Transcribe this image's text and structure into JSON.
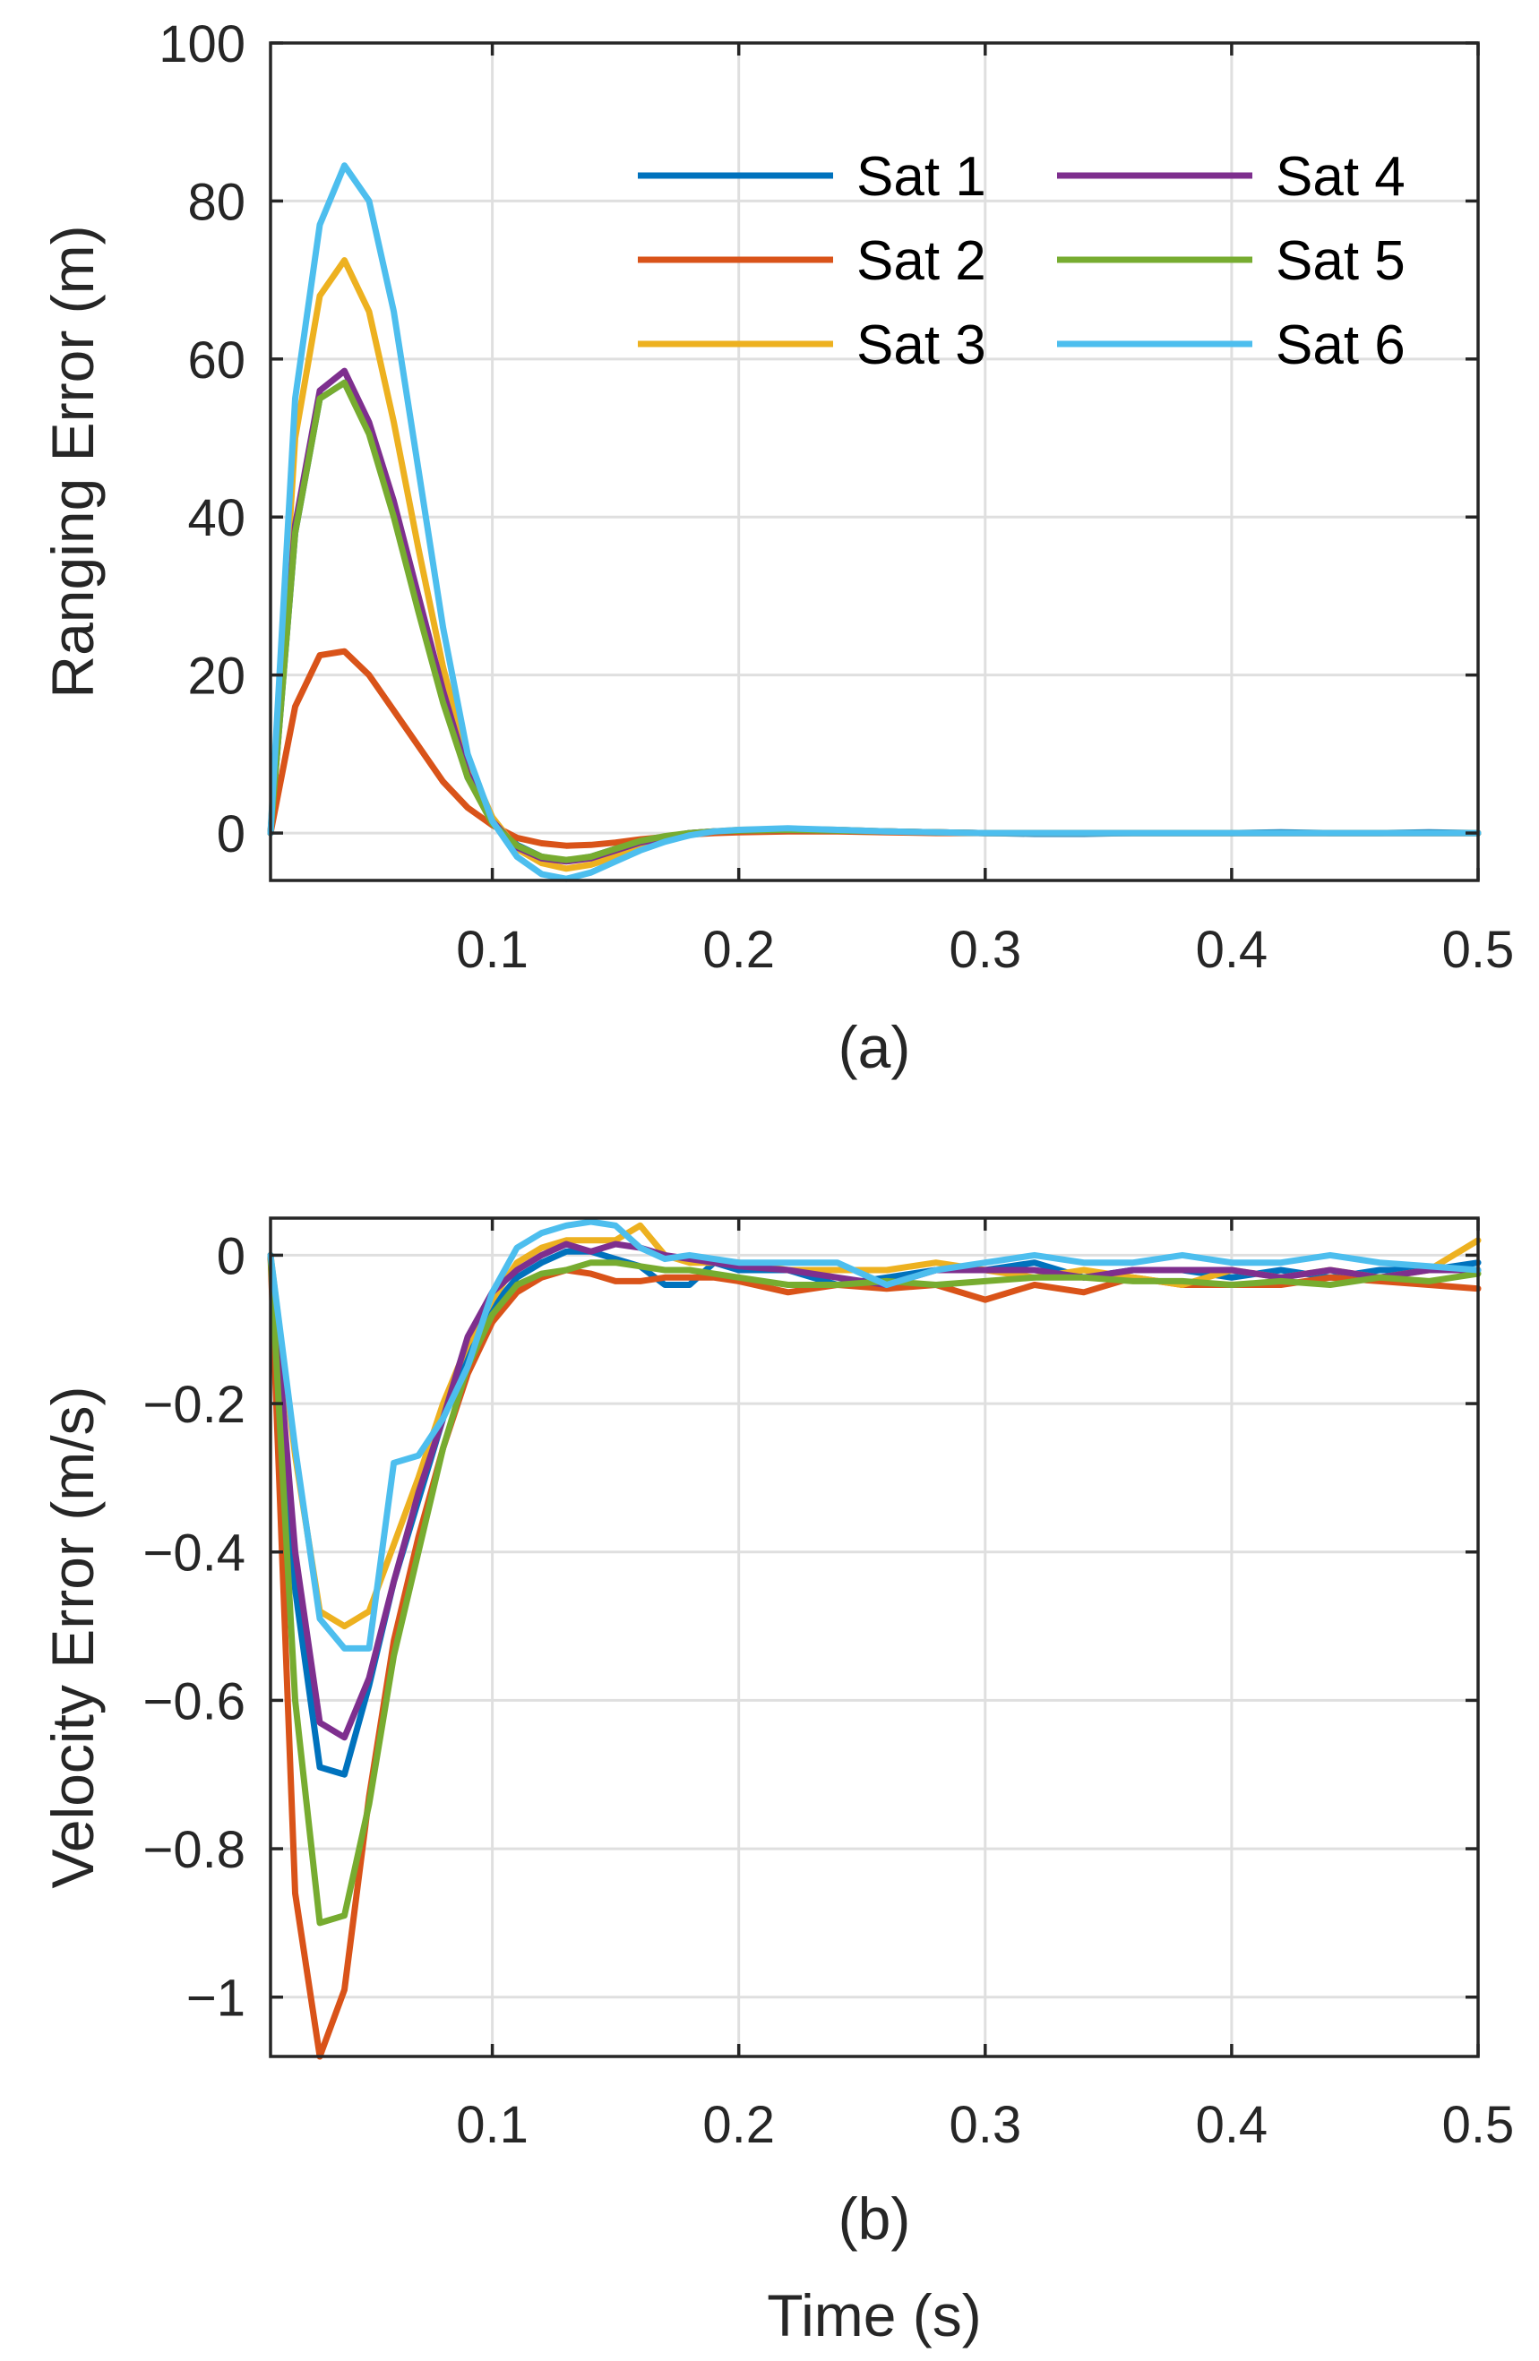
{
  "chart_data": [
    {
      "type": "line",
      "panel_label": "(a)",
      "ylabel": "Ranging Error (m)",
      "xlabel": "",
      "xlim": [
        0.01,
        0.5
      ],
      "ylim": [
        -6,
        100
      ],
      "xticks": [
        0.1,
        0.2,
        0.3,
        0.4,
        0.5
      ],
      "xtick_labels": [
        "0.1",
        "0.2",
        "0.3",
        "0.4",
        "0.5"
      ],
      "yticks": [
        0,
        20,
        40,
        60,
        80,
        100
      ],
      "ytick_labels": [
        "0",
        "20",
        "40",
        "60",
        "80",
        "100"
      ],
      "grid": true,
      "legend": {
        "placement": "top-right",
        "columns": 2
      },
      "x": [
        0.01,
        0.02,
        0.03,
        0.04,
        0.05,
        0.06,
        0.07,
        0.08,
        0.09,
        0.1,
        0.11,
        0.12,
        0.13,
        0.14,
        0.15,
        0.16,
        0.17,
        0.18,
        0.19,
        0.2,
        0.22,
        0.24,
        0.26,
        0.28,
        0.3,
        0.32,
        0.34,
        0.36,
        0.38,
        0.4,
        0.42,
        0.44,
        0.46,
        0.48,
        0.5
      ],
      "series": [
        {
          "name": "Sat 1",
          "color": "#0072BD",
          "values": [
            0,
            38,
            55,
            57,
            51,
            41,
            29,
            17,
            7,
            1.5,
            -1.5,
            -3,
            -3.5,
            -3,
            -2,
            -1,
            -0.5,
            0,
            0.2,
            0.3,
            0.5,
            0.4,
            0.2,
            0.1,
            0,
            -0.1,
            -0.1,
            0,
            0,
            0,
            0.1,
            0,
            0,
            0.1,
            0
          ]
        },
        {
          "name": "Sat 2",
          "color": "#D95319",
          "values": [
            0,
            16,
            22.5,
            23,
            20,
            15.5,
            11,
            6.5,
            3.2,
            1,
            -0.6,
            -1.3,
            -1.6,
            -1.5,
            -1.2,
            -0.8,
            -0.5,
            -0.2,
            0,
            0.1,
            0.2,
            0.2,
            0.1,
            0,
            0,
            0,
            0,
            0,
            0,
            0,
            0,
            0,
            0,
            0,
            0
          ]
        },
        {
          "name": "Sat 3",
          "color": "#EDB120",
          "values": [
            0,
            50,
            68,
            72.5,
            66,
            52,
            36,
            21,
            9,
            2,
            -2,
            -3.8,
            -4.5,
            -4,
            -3,
            -1.8,
            -0.9,
            -0.2,
            0.2,
            0.4,
            0.5,
            0.4,
            0.2,
            0.1,
            0,
            0,
            0,
            0,
            0,
            0,
            0,
            0,
            0,
            0,
            0
          ]
        },
        {
          "name": "Sat 4",
          "color": "#7E2F8E",
          "values": [
            0,
            39,
            56,
            58.5,
            52,
            42,
            30,
            18,
            7.5,
            1.5,
            -1.8,
            -3.2,
            -3.6,
            -3.2,
            -2.2,
            -1.2,
            -0.6,
            0,
            0.2,
            0.3,
            0.4,
            0.3,
            0.2,
            0.1,
            0,
            0,
            0,
            0,
            0,
            0,
            0,
            0,
            0,
            0,
            0
          ]
        },
        {
          "name": "Sat 5",
          "color": "#77AC30",
          "values": [
            0,
            38,
            55,
            57,
            50.5,
            40,
            28,
            16.5,
            7,
            1.2,
            -1.6,
            -3,
            -3.4,
            -3,
            -2,
            -1,
            -0.4,
            0,
            0.2,
            0.3,
            0.4,
            0.3,
            0.2,
            0.1,
            0,
            0,
            0,
            0,
            0,
            0,
            0,
            0,
            0,
            0,
            0
          ]
        },
        {
          "name": "Sat 6",
          "color": "#4DBEEE",
          "values": [
            0,
            55,
            77,
            84.5,
            80,
            66,
            46,
            26,
            10,
            1.5,
            -3,
            -5.2,
            -5.8,
            -5,
            -3.6,
            -2.2,
            -1.1,
            -0.3,
            0.2,
            0.4,
            0.6,
            0.4,
            0.2,
            0.1,
            0,
            0,
            0,
            0,
            0,
            0,
            0,
            0,
            0,
            0,
            0
          ]
        }
      ]
    },
    {
      "type": "line",
      "panel_label": "(b)",
      "ylabel": "Velocity Error (m/s)",
      "xlabel": "Time (s)",
      "xlim": [
        0.01,
        0.5
      ],
      "ylim": [
        -1.08,
        0.05
      ],
      "xticks": [
        0.1,
        0.2,
        0.3,
        0.4,
        0.5
      ],
      "xtick_labels": [
        "0.1",
        "0.2",
        "0.3",
        "0.4",
        "0.5"
      ],
      "yticks": [
        -1,
        -0.8,
        -0.6,
        -0.4,
        -0.2,
        0
      ],
      "ytick_labels": [
        "−1",
        "−0.8",
        "−0.6",
        "−0.4",
        "−0.2",
        "0"
      ],
      "grid": true,
      "x": [
        0.01,
        0.02,
        0.03,
        0.04,
        0.05,
        0.06,
        0.07,
        0.08,
        0.09,
        0.1,
        0.11,
        0.12,
        0.13,
        0.14,
        0.15,
        0.16,
        0.17,
        0.18,
        0.19,
        0.2,
        0.22,
        0.24,
        0.26,
        0.28,
        0.3,
        0.32,
        0.34,
        0.36,
        0.38,
        0.4,
        0.42,
        0.44,
        0.46,
        0.48,
        0.5
      ],
      "series": [
        {
          "name": "Sat 1",
          "color": "#0072BD",
          "values": [
            0,
            -0.45,
            -0.69,
            -0.7,
            -0.58,
            -0.44,
            -0.33,
            -0.22,
            -0.13,
            -0.07,
            -0.03,
            -0.01,
            0.005,
            0.005,
            -0.005,
            -0.015,
            -0.04,
            -0.04,
            -0.01,
            -0.02,
            -0.02,
            -0.04,
            -0.03,
            -0.02,
            -0.02,
            -0.01,
            -0.03,
            -0.02,
            -0.02,
            -0.03,
            -0.02,
            -0.03,
            -0.02,
            -0.02,
            -0.01
          ]
        },
        {
          "name": "Sat 2",
          "color": "#D95319",
          "values": [
            0,
            -0.86,
            -1.08,
            -0.99,
            -0.73,
            -0.52,
            -0.38,
            -0.26,
            -0.16,
            -0.09,
            -0.05,
            -0.03,
            -0.02,
            -0.025,
            -0.035,
            -0.035,
            -0.03,
            -0.03,
            -0.03,
            -0.035,
            -0.05,
            -0.04,
            -0.045,
            -0.04,
            -0.06,
            -0.04,
            -0.05,
            -0.03,
            -0.04,
            -0.04,
            -0.04,
            -0.03,
            -0.035,
            -0.04,
            -0.045
          ]
        },
        {
          "name": "Sat 3",
          "color": "#EDB120",
          "values": [
            0,
            -0.27,
            -0.48,
            -0.5,
            -0.48,
            -0.39,
            -0.3,
            -0.2,
            -0.12,
            -0.06,
            -0.01,
            0.01,
            0.02,
            0.02,
            0.02,
            0.04,
            0.0,
            -0.01,
            -0.01,
            -0.01,
            -0.02,
            -0.02,
            -0.02,
            -0.01,
            -0.02,
            -0.03,
            -0.02,
            -0.03,
            -0.04,
            -0.02,
            -0.03,
            -0.02,
            -0.03,
            -0.02,
            0.02
          ]
        },
        {
          "name": "Sat 4",
          "color": "#7E2F8E",
          "values": [
            0,
            -0.4,
            -0.63,
            -0.65,
            -0.57,
            -0.44,
            -0.32,
            -0.22,
            -0.11,
            -0.05,
            -0.02,
            0.0,
            0.015,
            0.005,
            0.015,
            0.01,
            0.0,
            -0.005,
            -0.01,
            -0.015,
            -0.02,
            -0.03,
            -0.04,
            -0.02,
            -0.02,
            -0.02,
            -0.03,
            -0.02,
            -0.02,
            -0.02,
            -0.03,
            -0.02,
            -0.03,
            -0.02,
            -0.02
          ]
        },
        {
          "name": "Sat 5",
          "color": "#77AC30",
          "values": [
            0,
            -0.6,
            -0.9,
            -0.89,
            -0.74,
            -0.54,
            -0.4,
            -0.26,
            -0.15,
            -0.08,
            -0.04,
            -0.025,
            -0.02,
            -0.01,
            -0.01,
            -0.015,
            -0.02,
            -0.02,
            -0.025,
            -0.03,
            -0.04,
            -0.04,
            -0.035,
            -0.04,
            -0.035,
            -0.03,
            -0.03,
            -0.035,
            -0.035,
            -0.04,
            -0.035,
            -0.04,
            -0.03,
            -0.035,
            -0.025
          ]
        },
        {
          "name": "Sat 6",
          "color": "#4DBEEE",
          "values": [
            0,
            -0.26,
            -0.49,
            -0.53,
            -0.53,
            -0.28,
            -0.27,
            -0.22,
            -0.15,
            -0.05,
            0.01,
            0.03,
            0.04,
            0.045,
            0.04,
            0.01,
            -0.005,
            0.0,
            -0.005,
            -0.01,
            -0.01,
            -0.01,
            -0.04,
            -0.02,
            -0.01,
            0.0,
            -0.01,
            -0.01,
            0.0,
            -0.01,
            -0.01,
            0.0,
            -0.01,
            -0.015,
            -0.02
          ]
        }
      ]
    }
  ]
}
